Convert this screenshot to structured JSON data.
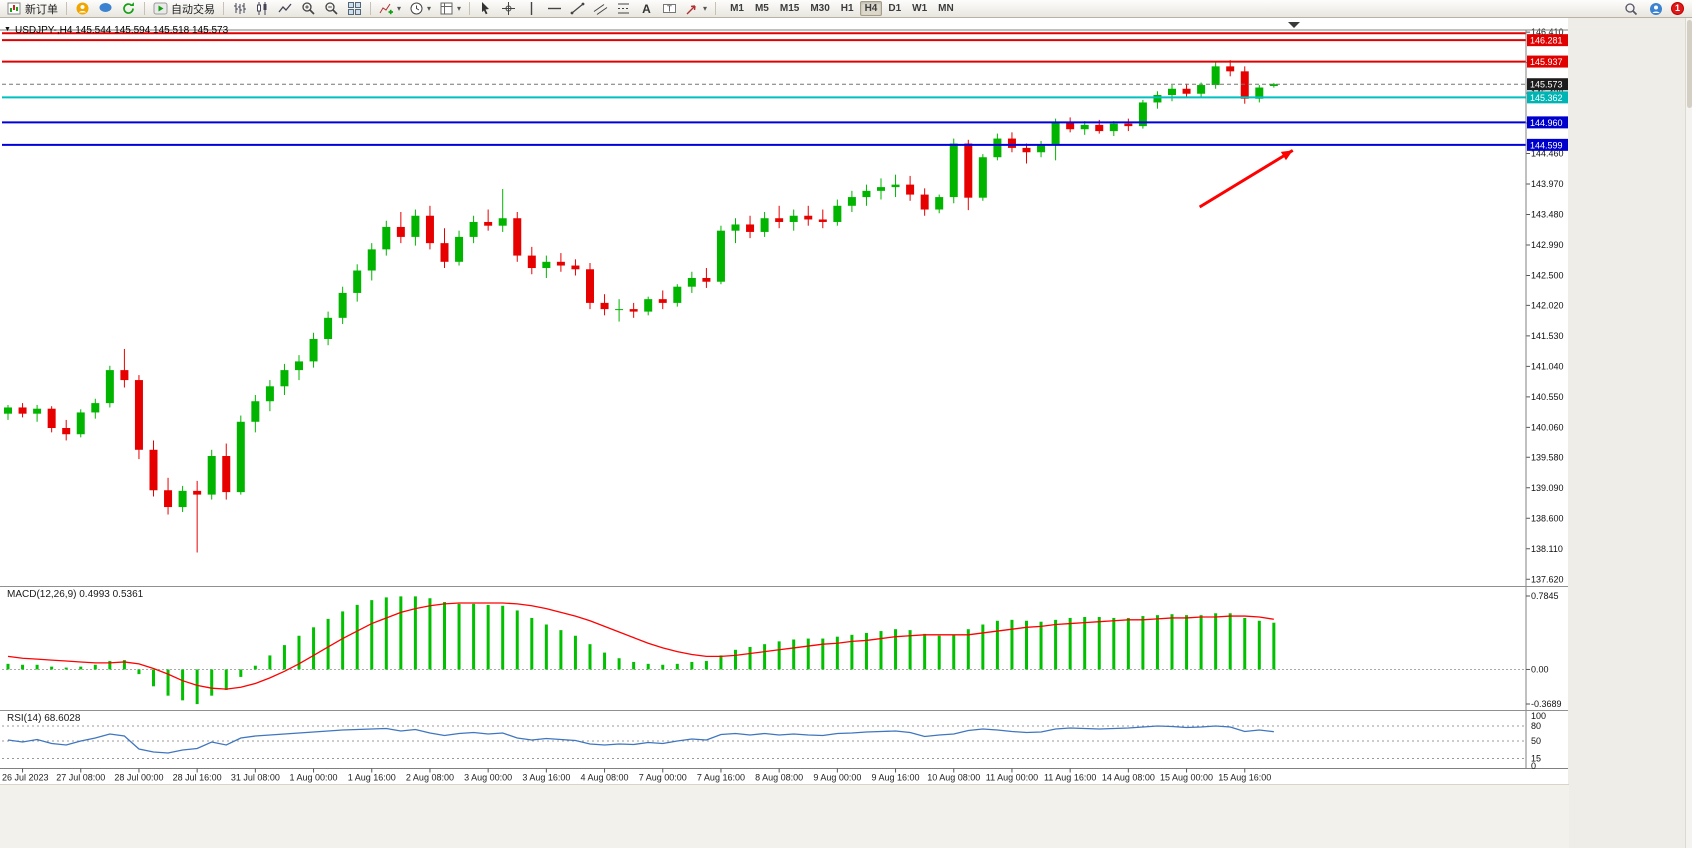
{
  "toolbar": {
    "new_order_label": "新订单",
    "autotrade_label": "自动交易",
    "timeframes": [
      "M1",
      "M5",
      "M15",
      "M30",
      "H1",
      "H4",
      "D1",
      "W1",
      "MN"
    ],
    "active_timeframe": "H4",
    "notification_count": "1",
    "icon_names": [
      "new-order",
      "community",
      "chat",
      "refresh",
      "autotrade",
      "bar-chart",
      "candlestick-chart",
      "line-chart",
      "zoom-in",
      "zoom-out",
      "tile-windows",
      "indicators",
      "periods-clock",
      "templates",
      "cursor",
      "crosshair",
      "vertical-line",
      "horizontal-line",
      "trendline",
      "channel",
      "fibonacci",
      "text-tool",
      "label-tool",
      "shapes-dropdown",
      "search",
      "profile",
      "notification-badge"
    ]
  },
  "chart": {
    "title": "USDJPY-,H4 145.544 145.594 145.518 145.573",
    "symbol": "USDJPY-",
    "period": "H4",
    "open": "145.544",
    "high": "145.594",
    "low": "145.518",
    "close": "145.573"
  },
  "chart_data": {
    "type": "candlestick",
    "symbol": "USDJPY-",
    "timeframe": "H4",
    "colors": {
      "up": "#00b400",
      "down": "#e60000",
      "macd_hist": "#00c000",
      "macd_signal": "#ff0000",
      "rsi": "#3f76bf",
      "resistance": "#e00000",
      "support": "#0000dd",
      "pivot_cyan": "#00c0c0",
      "current_label_bg": "#1c1c1c"
    },
    "candles": [
      [
        140.28,
        140.42,
        140.18,
        140.38
      ],
      [
        140.38,
        140.45,
        140.22,
        140.28
      ],
      [
        140.28,
        140.42,
        140.15,
        140.36
      ],
      [
        140.36,
        140.4,
        139.98,
        140.05
      ],
      [
        140.05,
        140.18,
        139.85,
        139.95
      ],
      [
        139.95,
        140.35,
        139.9,
        140.3
      ],
      [
        140.3,
        140.52,
        140.2,
        140.45
      ],
      [
        140.45,
        141.05,
        140.38,
        140.98
      ],
      [
        140.98,
        141.32,
        140.7,
        140.82
      ],
      [
        140.82,
        140.9,
        139.55,
        139.7
      ],
      [
        139.7,
        139.85,
        138.95,
        139.05
      ],
      [
        139.05,
        139.25,
        138.66,
        138.78
      ],
      [
        138.78,
        139.12,
        138.7,
        139.04
      ],
      [
        139.04,
        139.2,
        138.05,
        138.98
      ],
      [
        138.98,
        139.7,
        138.9,
        139.6
      ],
      [
        139.6,
        139.8,
        138.9,
        139.02
      ],
      [
        139.02,
        140.25,
        138.98,
        140.15
      ],
      [
        140.15,
        140.58,
        139.98,
        140.48
      ],
      [
        140.48,
        140.82,
        140.32,
        140.72
      ],
      [
        140.72,
        141.08,
        140.58,
        140.98
      ],
      [
        140.98,
        141.22,
        140.82,
        141.12
      ],
      [
        141.12,
        141.58,
        141.02,
        141.48
      ],
      [
        141.48,
        141.92,
        141.38,
        141.82
      ],
      [
        141.82,
        142.32,
        141.72,
        142.22
      ],
      [
        142.22,
        142.68,
        142.08,
        142.58
      ],
      [
        142.58,
        143.02,
        142.42,
        142.92
      ],
      [
        142.92,
        143.38,
        142.82,
        143.28
      ],
      [
        143.28,
        143.52,
        143.02,
        143.12
      ],
      [
        143.12,
        143.56,
        142.98,
        143.46
      ],
      [
        143.46,
        143.62,
        142.92,
        143.02
      ],
      [
        143.02,
        143.26,
        142.62,
        142.72
      ],
      [
        142.72,
        143.22,
        142.66,
        143.12
      ],
      [
        143.12,
        143.46,
        143.02,
        143.36
      ],
      [
        143.36,
        143.56,
        143.22,
        143.3
      ],
      [
        143.3,
        143.89,
        143.2,
        143.42
      ],
      [
        143.42,
        143.52,
        142.72,
        142.82
      ],
      [
        142.82,
        142.96,
        142.52,
        142.62
      ],
      [
        142.62,
        142.82,
        142.46,
        142.72
      ],
      [
        142.72,
        142.86,
        142.56,
        142.66
      ],
      [
        142.66,
        142.76,
        142.5,
        142.6
      ],
      [
        142.6,
        142.7,
        141.96,
        142.06
      ],
      [
        142.06,
        142.2,
        141.86,
        141.96
      ],
      [
        141.96,
        142.12,
        141.76,
        141.96
      ],
      [
        141.96,
        142.06,
        141.82,
        141.92
      ],
      [
        141.92,
        142.16,
        141.86,
        142.12
      ],
      [
        142.12,
        142.26,
        141.96,
        142.06
      ],
      [
        142.06,
        142.36,
        142.0,
        142.32
      ],
      [
        142.32,
        142.56,
        142.22,
        142.46
      ],
      [
        142.46,
        142.62,
        142.3,
        142.4
      ],
      [
        142.4,
        143.3,
        142.36,
        143.22
      ],
      [
        143.22,
        143.42,
        143.02,
        143.32
      ],
      [
        143.32,
        143.46,
        143.1,
        143.2
      ],
      [
        143.2,
        143.52,
        143.12,
        143.42
      ],
      [
        143.42,
        143.62,
        143.26,
        143.36
      ],
      [
        143.36,
        143.56,
        143.22,
        143.46
      ],
      [
        143.46,
        143.62,
        143.3,
        143.4
      ],
      [
        143.4,
        143.56,
        143.26,
        143.36
      ],
      [
        143.36,
        143.72,
        143.3,
        143.62
      ],
      [
        143.62,
        143.86,
        143.52,
        143.76
      ],
      [
        143.76,
        143.96,
        143.62,
        143.86
      ],
      [
        143.86,
        144.06,
        143.72,
        143.92
      ],
      [
        143.92,
        144.12,
        143.76,
        143.96
      ],
      [
        143.96,
        144.1,
        143.7,
        143.8
      ],
      [
        143.8,
        143.9,
        143.46,
        143.56
      ],
      [
        143.56,
        143.8,
        143.5,
        143.76
      ],
      [
        143.76,
        144.7,
        143.66,
        144.62
      ],
      [
        144.62,
        144.68,
        143.55,
        143.75
      ],
      [
        143.75,
        144.45,
        143.7,
        144.4
      ],
      [
        144.4,
        144.78,
        144.35,
        144.7
      ],
      [
        144.7,
        144.8,
        144.48,
        144.55
      ],
      [
        144.55,
        144.62,
        144.3,
        144.48
      ],
      [
        144.48,
        144.66,
        144.4,
        144.6
      ],
      [
        144.6,
        145.02,
        144.35,
        144.96
      ],
      [
        144.96,
        145.04,
        144.8,
        144.85
      ],
      [
        144.85,
        144.98,
        144.76,
        144.92
      ],
      [
        144.92,
        145.0,
        144.78,
        144.82
      ],
      [
        144.82,
        144.98,
        144.74,
        144.94
      ],
      [
        144.94,
        145.02,
        144.82,
        144.9
      ],
      [
        144.9,
        145.32,
        144.86,
        145.28
      ],
      [
        145.28,
        145.46,
        145.18,
        145.4
      ],
      [
        145.4,
        145.56,
        145.3,
        145.5
      ],
      [
        145.5,
        145.58,
        145.36,
        145.42
      ],
      [
        145.42,
        145.6,
        145.36,
        145.56
      ],
      [
        145.56,
        145.94,
        145.5,
        145.86
      ],
      [
        145.86,
        145.96,
        145.7,
        145.78
      ],
      [
        145.78,
        145.86,
        145.26,
        145.34
      ],
      [
        145.34,
        145.56,
        145.28,
        145.52
      ],
      [
        145.544,
        145.594,
        145.518,
        145.573
      ]
    ],
    "time_labels": [
      {
        "index": 1,
        "text": "26 Jul 2023"
      },
      {
        "index": 5,
        "text": "27 Jul 08:00"
      },
      {
        "index": 9,
        "text": "28 Jul 00:00"
      },
      {
        "index": 13,
        "text": "28 Jul 16:00"
      },
      {
        "index": 17,
        "text": "31 Jul 08:00"
      },
      {
        "index": 21,
        "text": "1 Aug 00:00"
      },
      {
        "index": 25,
        "text": "1 Aug 16:00"
      },
      {
        "index": 29,
        "text": "2 Aug 08:00"
      },
      {
        "index": 33,
        "text": "3 Aug 00:00"
      },
      {
        "index": 37,
        "text": "3 Aug 16:00"
      },
      {
        "index": 41,
        "text": "4 Aug 08:00"
      },
      {
        "index": 45,
        "text": "7 Aug 00:00"
      },
      {
        "index": 49,
        "text": "7 Aug 16:00"
      },
      {
        "index": 53,
        "text": "8 Aug 08:00"
      },
      {
        "index": 57,
        "text": "9 Aug 00:00"
      },
      {
        "index": 61,
        "text": "9 Aug 16:00"
      },
      {
        "index": 65,
        "text": "10 Aug 08:00"
      },
      {
        "index": 69,
        "text": "11 Aug 00:00"
      },
      {
        "index": 73,
        "text": "11 Aug 16:00"
      },
      {
        "index": 77,
        "text": "14 Aug 08:00"
      },
      {
        "index": 81,
        "text": "15 Aug 00:00"
      },
      {
        "index": 85,
        "text": "15 Aug 16:00"
      }
    ],
    "price_axis": [
      146.41,
      145.92,
      145.43,
      144.95,
      144.46,
      143.97,
      143.48,
      142.99,
      142.5,
      142.02,
      141.53,
      141.04,
      140.55,
      140.06,
      139.58,
      139.09,
      138.6,
      138.11,
      137.62
    ],
    "lines": [
      {
        "price": 146.392,
        "color": "#e00000",
        "width": 2
      },
      {
        "price": 146.281,
        "color": "#e00000",
        "width": 2,
        "label": "146.281",
        "label_bg": "#e00000"
      },
      {
        "price": 145.937,
        "color": "#e00000",
        "width": 2,
        "label": "145.937",
        "label_bg": "#e00000"
      },
      {
        "price": 145.362,
        "color": "#00c0c0",
        "width": 2,
        "label": "145.362",
        "label_bg": "#00b4b4"
      },
      {
        "price": 144.96,
        "color": "#0000dd",
        "width": 2,
        "label": "144.960",
        "label_bg": "#0000cc"
      },
      {
        "price": 144.599,
        "color": "#0000dd",
        "width": 2,
        "label": "144.599",
        "label_bg": "#0000cc"
      },
      {
        "price": 145.573,
        "color": "#777777",
        "width": 1,
        "style": "dashed",
        "label": "145.573",
        "label_bg": "#1c1c1c"
      }
    ],
    "arrow": {
      "color": "#ff0000",
      "from": {
        "index": 81.9,
        "price": 143.6
      },
      "to": {
        "index": 88.3,
        "price": 144.51
      }
    },
    "macd": {
      "label": "MACD(12,26,9)",
      "values_text": "0.4993 0.5361",
      "main_value": 0.4993,
      "signal_value": 0.5361,
      "axis": [
        {
          "v": 0.7845,
          "t": "0.7845"
        },
        {
          "v": 0,
          "t": "0.00"
        },
        {
          "v": -0.3689,
          "t": "-0.3689"
        }
      ],
      "histogram": [
        0.06,
        0.05,
        0.05,
        0.03,
        0.02,
        0.03,
        0.05,
        0.09,
        0.1,
        -0.05,
        -0.18,
        -0.28,
        -0.33,
        -0.37,
        -0.28,
        -0.22,
        -0.08,
        0.04,
        0.15,
        0.26,
        0.36,
        0.45,
        0.54,
        0.62,
        0.69,
        0.74,
        0.77,
        0.78,
        0.78,
        0.76,
        0.72,
        0.7,
        0.7,
        0.69,
        0.68,
        0.63,
        0.55,
        0.48,
        0.42,
        0.36,
        0.27,
        0.18,
        0.12,
        0.08,
        0.06,
        0.05,
        0.06,
        0.08,
        0.09,
        0.15,
        0.21,
        0.24,
        0.27,
        0.3,
        0.32,
        0.33,
        0.33,
        0.35,
        0.37,
        0.39,
        0.41,
        0.43,
        0.42,
        0.38,
        0.36,
        0.37,
        0.43,
        0.48,
        0.52,
        0.53,
        0.52,
        0.51,
        0.53,
        0.55,
        0.56,
        0.56,
        0.55,
        0.55,
        0.57,
        0.58,
        0.59,
        0.58,
        0.58,
        0.6,
        0.6,
        0.55,
        0.52,
        0.4993
      ],
      "signal": [
        0.14,
        0.12,
        0.11,
        0.1,
        0.09,
        0.08,
        0.07,
        0.07,
        0.08,
        0.06,
        0.01,
        -0.05,
        -0.12,
        -0.17,
        -0.2,
        -0.21,
        -0.19,
        -0.15,
        -0.09,
        -0.02,
        0.06,
        0.15,
        0.24,
        0.33,
        0.41,
        0.49,
        0.55,
        0.61,
        0.65,
        0.68,
        0.7,
        0.71,
        0.71,
        0.71,
        0.71,
        0.7,
        0.68,
        0.65,
        0.61,
        0.57,
        0.52,
        0.46,
        0.4,
        0.34,
        0.28,
        0.23,
        0.19,
        0.16,
        0.14,
        0.14,
        0.15,
        0.17,
        0.19,
        0.21,
        0.23,
        0.25,
        0.27,
        0.28,
        0.3,
        0.31,
        0.33,
        0.35,
        0.36,
        0.37,
        0.37,
        0.37,
        0.37,
        0.39,
        0.41,
        0.43,
        0.45,
        0.46,
        0.48,
        0.49,
        0.5,
        0.51,
        0.52,
        0.53,
        0.53,
        0.54,
        0.55,
        0.55,
        0.56,
        0.56,
        0.57,
        0.57,
        0.56,
        0.5361
      ]
    },
    "rsi": {
      "label": "RSI(14)",
      "value_text": "68.6028",
      "value": 68.6028,
      "levels": [
        80,
        50,
        15
      ],
      "axis": [
        {
          "v": 100,
          "t": "100"
        },
        {
          "v": 80,
          "t": "80"
        },
        {
          "v": 50,
          "t": "50"
        },
        {
          "v": 15,
          "t": "15"
        },
        {
          "v": 0,
          "t": "0"
        }
      ],
      "values": [
        52,
        48,
        53,
        45,
        42,
        50,
        56,
        64,
        60,
        34,
        28,
        26,
        32,
        35,
        48,
        42,
        56,
        60,
        62,
        64,
        66,
        68,
        70,
        72,
        73,
        74,
        75,
        70,
        73,
        66,
        61,
        65,
        67,
        64,
        66,
        56,
        52,
        55,
        53,
        51,
        44,
        42,
        44,
        43,
        47,
        45,
        50,
        54,
        52,
        63,
        65,
        62,
        65,
        62,
        64,
        62,
        61,
        65,
        66,
        68,
        69,
        70,
        67,
        59,
        62,
        64,
        71,
        74,
        72,
        69,
        67,
        68,
        74,
        76,
        75,
        74,
        75,
        76,
        78,
        80,
        79,
        77,
        78,
        80,
        78,
        69,
        72,
        68.6028
      ]
    }
  }
}
